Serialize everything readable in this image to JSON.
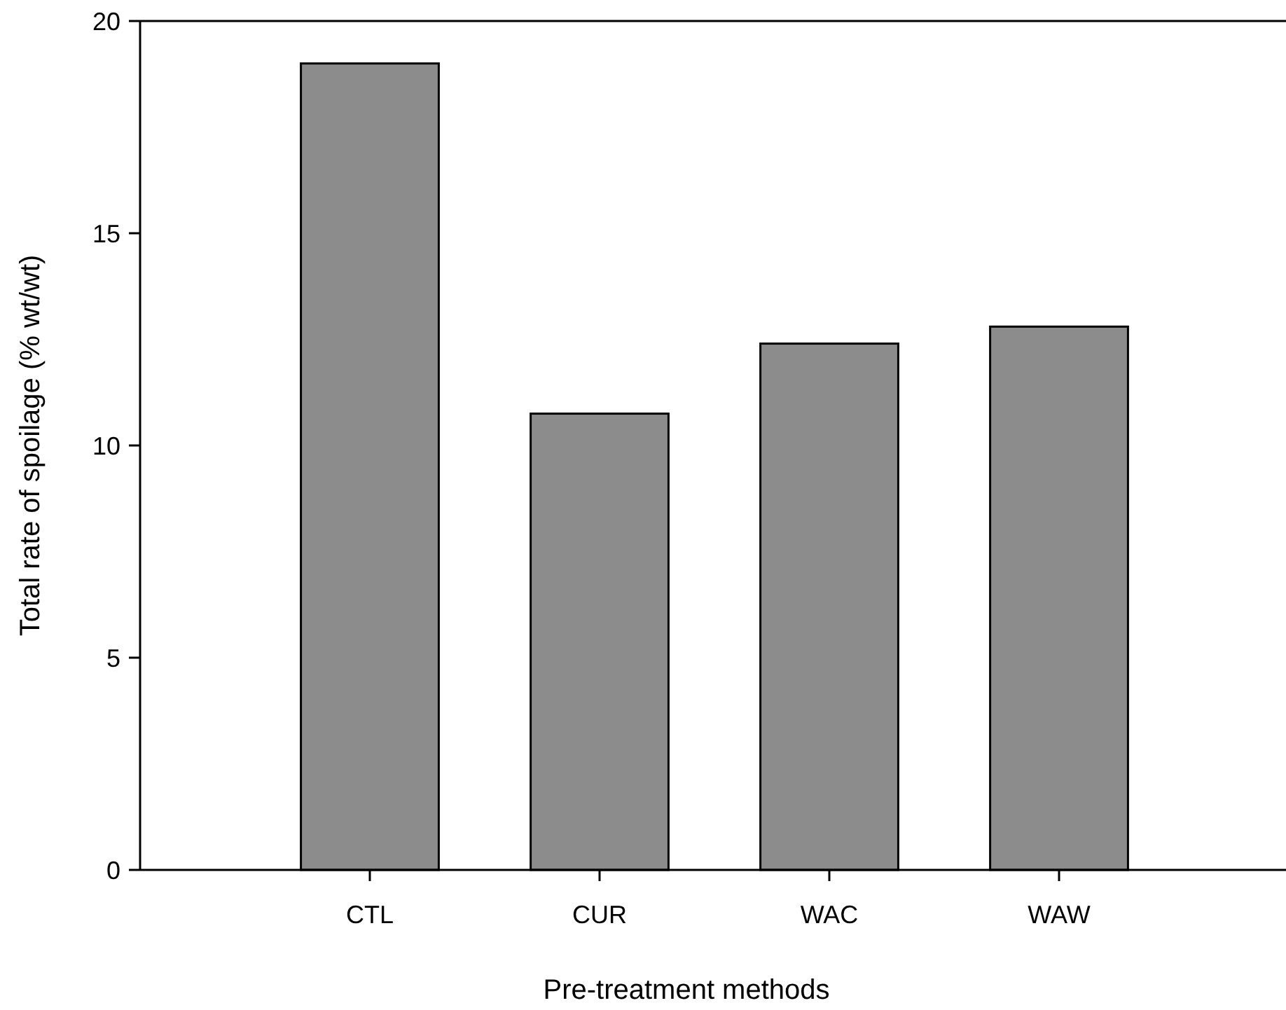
{
  "chart_data": {
    "type": "bar",
    "xlabel": "Pre-treatment methods",
    "ylabel": "Total rate of spoilage (% wt/wt)",
    "categories": [
      "CTL",
      "CUR",
      "WAC",
      "WAW"
    ],
    "values": [
      19.0,
      10.75,
      12.4,
      12.8
    ],
    "color": "#8c8c8c",
    "ylim": [
      0,
      20
    ],
    "yticks": [
      0,
      5,
      10,
      15,
      20
    ],
    "grid": false
  }
}
